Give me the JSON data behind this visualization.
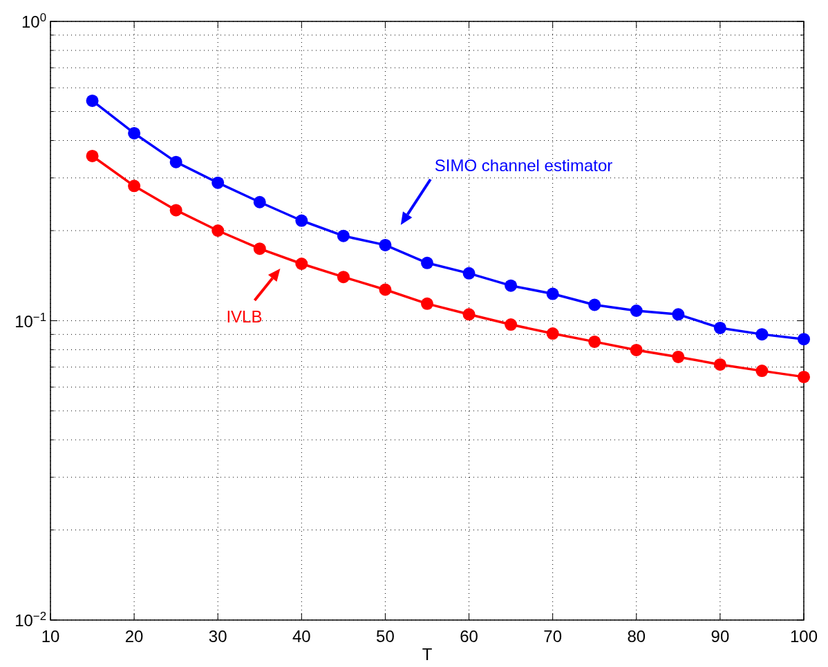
{
  "chart_data": {
    "type": "line",
    "xlabel": "T",
    "log": "y",
    "grid": true,
    "marker": "circle",
    "line_style": "solid",
    "x": [
      15,
      20,
      25,
      30,
      35,
      40,
      45,
      50,
      55,
      60,
      65,
      70,
      75,
      80,
      85,
      90,
      95,
      100
    ],
    "xlim": [
      10,
      100
    ],
    "xticks": [
      10,
      20,
      30,
      40,
      50,
      60,
      70,
      80,
      90,
      100
    ],
    "ylim": [
      0.01,
      1
    ],
    "yticks": [
      {
        "value": 0.01,
        "label": "10$^{−2}$"
      },
      {
        "value": 0.02,
        "label": null
      },
      {
        "value": 0.03,
        "label": null
      },
      {
        "value": 0.04,
        "label": null
      },
      {
        "value": 0.05,
        "label": null
      },
      {
        "value": 0.06,
        "label": null
      },
      {
        "value": 0.07,
        "label": null
      },
      {
        "value": 0.08,
        "label": null
      },
      {
        "value": 0.09,
        "label": null
      },
      {
        "value": 0.1,
        "label": "10$^{−1}$"
      },
      {
        "value": 0.2,
        "label": null
      },
      {
        "value": 0.3,
        "label": null
      },
      {
        "value": 0.4,
        "label": null
      },
      {
        "value": 0.5,
        "label": null
      },
      {
        "value": 0.6,
        "label": null
      },
      {
        "value": 0.7,
        "label": null
      },
      {
        "value": 0.8,
        "label": null
      },
      {
        "value": 0.9,
        "label": null
      },
      {
        "value": 1,
        "label": "10$^{0}$"
      }
    ],
    "series": [
      {
        "color": "#0000ff",
        "values": [
          0.543,
          0.423,
          0.339,
          0.289,
          0.249,
          0.216,
          0.192,
          0.179,
          0.156,
          0.144,
          0.131,
          0.123,
          0.113,
          0.108,
          0.105,
          0.0946,
          0.0901,
          0.0868
        ]
      },
      {
        "color": "#ff0000",
        "values": [
          0.355,
          0.282,
          0.234,
          0.2,
          0.174,
          0.155,
          0.14,
          0.127,
          0.114,
          0.105,
          0.0971,
          0.0906,
          0.0851,
          0.0798,
          0.0757,
          0.0714,
          0.068,
          0.0649
        ]
      }
    ],
    "annotations": [
      "SIMO channel estimator",
      "IVLB"
    ]
  }
}
